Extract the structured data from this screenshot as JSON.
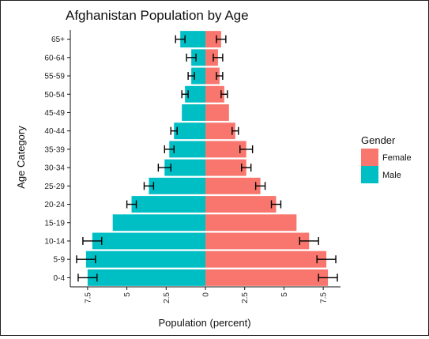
{
  "chart_data": {
    "type": "bar",
    "orientation": "horizontal",
    "title": "Afghanistan Population by Age",
    "xlabel": "Population (percent)",
    "ylabel": "Age Category",
    "categories": [
      "0-4",
      "5-9",
      "10-14",
      "15-19",
      "20-24",
      "25-29",
      "30-34",
      "35-39",
      "40-44",
      "45-49",
      "50-54",
      "55-59",
      "60-64",
      "65+"
    ],
    "x_ticks": [
      -7.5,
      -5,
      -2.5,
      0,
      2.5,
      5,
      7.5
    ],
    "x_tick_labels": [
      "7.5",
      "5",
      "2.5",
      "0",
      "2.5",
      "5",
      "7.5"
    ],
    "xlim": [
      -8.6,
      8.6
    ],
    "legend": {
      "title": "Gender",
      "placement": "right",
      "entries": [
        "Female",
        "Male"
      ]
    },
    "series": [
      {
        "name": "Female",
        "color": "#F8766D",
        "values": [
          7.8,
          7.7,
          6.6,
          5.8,
          4.5,
          3.5,
          2.6,
          2.6,
          1.9,
          1.5,
          1.2,
          0.9,
          0.8,
          1.0
        ],
        "error": [
          0.6,
          0.6,
          0.6,
          0.0,
          0.3,
          0.3,
          0.3,
          0.4,
          0.2,
          0.0,
          0.2,
          0.2,
          0.3,
          0.3
        ]
      },
      {
        "name": "Male",
        "color": "#00BFC4",
        "values": [
          -7.5,
          -7.6,
          -7.2,
          -5.9,
          -4.7,
          -3.6,
          -2.6,
          -2.3,
          -2.0,
          -1.5,
          -1.3,
          -0.9,
          -0.9,
          -1.6
        ],
        "error": [
          0.6,
          0.6,
          0.6,
          0.0,
          0.3,
          0.3,
          0.4,
          0.3,
          0.2,
          0.0,
          0.2,
          0.2,
          0.3,
          0.3
        ]
      }
    ]
  }
}
